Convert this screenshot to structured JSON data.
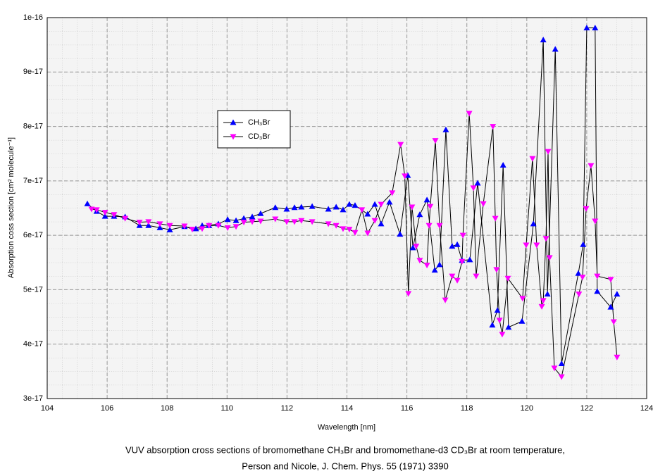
{
  "chart_data": {
    "type": "line",
    "xlabel": "Wavelength [nm]",
    "ylabel": "Absorption coss section [cm² molecule⁻¹]",
    "caption": [
      "VUV absorption cross sections of bromomethane CH₃Br and bromomethane-d3 CD₃Br at room temperature,",
      "Person and Nicole, J. Chem. Phys. 55 (1971) 3390"
    ],
    "xlim": [
      104,
      124
    ],
    "xticks": [
      104,
      106,
      108,
      110,
      112,
      114,
      116,
      118,
      120,
      122,
      124
    ],
    "ylim": [
      3e-17,
      1e-16
    ],
    "yticks": [
      3e-17,
      4e-17,
      5e-17,
      6e-17,
      7e-17,
      8e-17,
      9e-17,
      1e-16
    ],
    "grid": true,
    "series": [
      {
        "name": "CH₃Br",
        "color": "#0000ff",
        "marker": "triangle-up",
        "x": [
          105.34,
          105.65,
          105.93,
          106.23,
          106.6,
          107.08,
          107.38,
          107.76,
          108.09,
          108.58,
          108.96,
          109.17,
          109.4,
          109.71,
          110.02,
          110.3,
          110.56,
          110.84,
          111.12,
          111.61,
          111.99,
          112.25,
          112.48,
          112.84,
          113.38,
          113.64,
          113.87,
          114.08,
          114.27,
          114.69,
          114.93,
          115.14,
          115.42,
          115.77,
          116.03,
          116.2,
          116.43,
          116.67,
          116.93,
          117.09,
          117.3,
          117.51,
          117.68,
          117.84,
          118.1,
          118.36,
          118.85,
          119.02,
          119.21,
          119.39,
          119.84,
          120.22,
          120.55,
          120.69,
          120.95,
          121.16,
          121.72,
          121.88,
          122.0,
          122.28,
          122.35,
          122.8,
          123.01
        ],
        "values": [
          6.58e-17,
          6.44e-17,
          6.35e-17,
          6.35e-17,
          6.34e-17,
          6.18e-17,
          6.18e-17,
          6.14e-17,
          6.1e-17,
          6.16e-17,
          6.12e-17,
          6.18e-17,
          6.18e-17,
          6.21e-17,
          6.29e-17,
          6.27e-17,
          6.31e-17,
          6.34e-17,
          6.4e-17,
          6.51e-17,
          6.48e-17,
          6.51e-17,
          6.52e-17,
          6.53e-17,
          6.48e-17,
          6.52e-17,
          6.47e-17,
          6.57e-17,
          6.55e-17,
          6.39e-17,
          6.57e-17,
          6.21e-17,
          6.61e-17,
          6.02e-17,
          7.1e-17,
          5.77e-17,
          6.38e-17,
          6.65e-17,
          5.36e-17,
          5.46e-17,
          7.94e-17,
          5.8e-17,
          5.83e-17,
          5.54e-17,
          5.55e-17,
          6.96e-17,
          4.35e-17,
          4.62e-17,
          7.29e-17,
          4.31e-17,
          4.42e-17,
          6.21e-17,
          9.59e-17,
          4.92e-17,
          9.42e-17,
          3.64e-17,
          5.3e-17,
          5.83e-17,
          9.81e-17,
          9.81e-17,
          4.97e-17,
          4.68e-17,
          4.92e-17
        ]
      },
      {
        "name": "CD₃Br",
        "color": "#ff00ff",
        "marker": "triangle-down",
        "x": [
          105.48,
          105.65,
          105.93,
          106.23,
          106.6,
          107.08,
          107.38,
          107.76,
          108.09,
          108.58,
          108.84,
          109.17,
          109.4,
          109.71,
          110.02,
          110.3,
          110.56,
          110.84,
          111.12,
          111.61,
          111.99,
          112.25,
          112.48,
          112.84,
          113.38,
          113.64,
          113.87,
          114.08,
          114.27,
          114.5,
          114.69,
          114.93,
          115.14,
          115.51,
          115.79,
          115.93,
          116.05,
          116.17,
          116.31,
          116.43,
          116.67,
          116.74,
          116.78,
          116.95,
          117.09,
          117.28,
          117.51,
          117.68,
          117.84,
          117.87,
          118.08,
          118.22,
          118.31,
          118.55,
          118.87,
          118.95,
          118.99,
          119.09,
          119.18,
          119.37,
          119.86,
          119.98,
          120.19,
          120.33,
          120.5,
          120.55,
          120.64,
          120.71,
          120.76,
          120.92,
          121.16,
          121.74,
          121.86,
          121.98,
          122.14,
          122.28,
          122.35,
          122.8,
          122.9,
          123.01
        ],
        "values": [
          6.48e-17,
          6.47e-17,
          6.42e-17,
          6.38e-17,
          6.31e-17,
          6.24e-17,
          6.25e-17,
          6.21e-17,
          6.18e-17,
          6.17e-17,
          6.11e-17,
          6.12e-17,
          6.18e-17,
          6.18e-17,
          6.14e-17,
          6.16e-17,
          6.24e-17,
          6.25e-17,
          6.26e-17,
          6.3e-17,
          6.25e-17,
          6.25e-17,
          6.27e-17,
          6.25e-17,
          6.21e-17,
          6.18e-17,
          6.12e-17,
          6.11e-17,
          6.05e-17,
          6.47e-17,
          6.04e-17,
          6.27e-17,
          6.57e-17,
          6.78e-17,
          7.67e-17,
          7.09e-17,
          4.93e-17,
          6.52e-17,
          5.8e-17,
          5.54e-17,
          5.45e-17,
          6.18e-17,
          6.53e-17,
          7.74e-17,
          6.18e-17,
          4.81e-17,
          5.25e-17,
          5.17e-17,
          5.52e-17,
          6e-17,
          8.24e-17,
          6.87e-17,
          5.25e-17,
          6.58e-17,
          8e-17,
          6.31e-17,
          5.37e-17,
          4.44e-17,
          4.18e-17,
          5.21e-17,
          4.84e-17,
          5.82e-17,
          7.41e-17,
          5.82e-17,
          4.69e-17,
          4.8e-17,
          5.94e-17,
          7.54e-17,
          5.59e-17,
          3.56e-17,
          3.4e-17,
          4.92e-17,
          5.23e-17,
          6.49e-17,
          7.28e-17,
          6.26e-17,
          5.25e-17,
          5.19e-17,
          4.41e-17,
          3.76e-17
        ]
      }
    ],
    "line_color": "#000000"
  }
}
